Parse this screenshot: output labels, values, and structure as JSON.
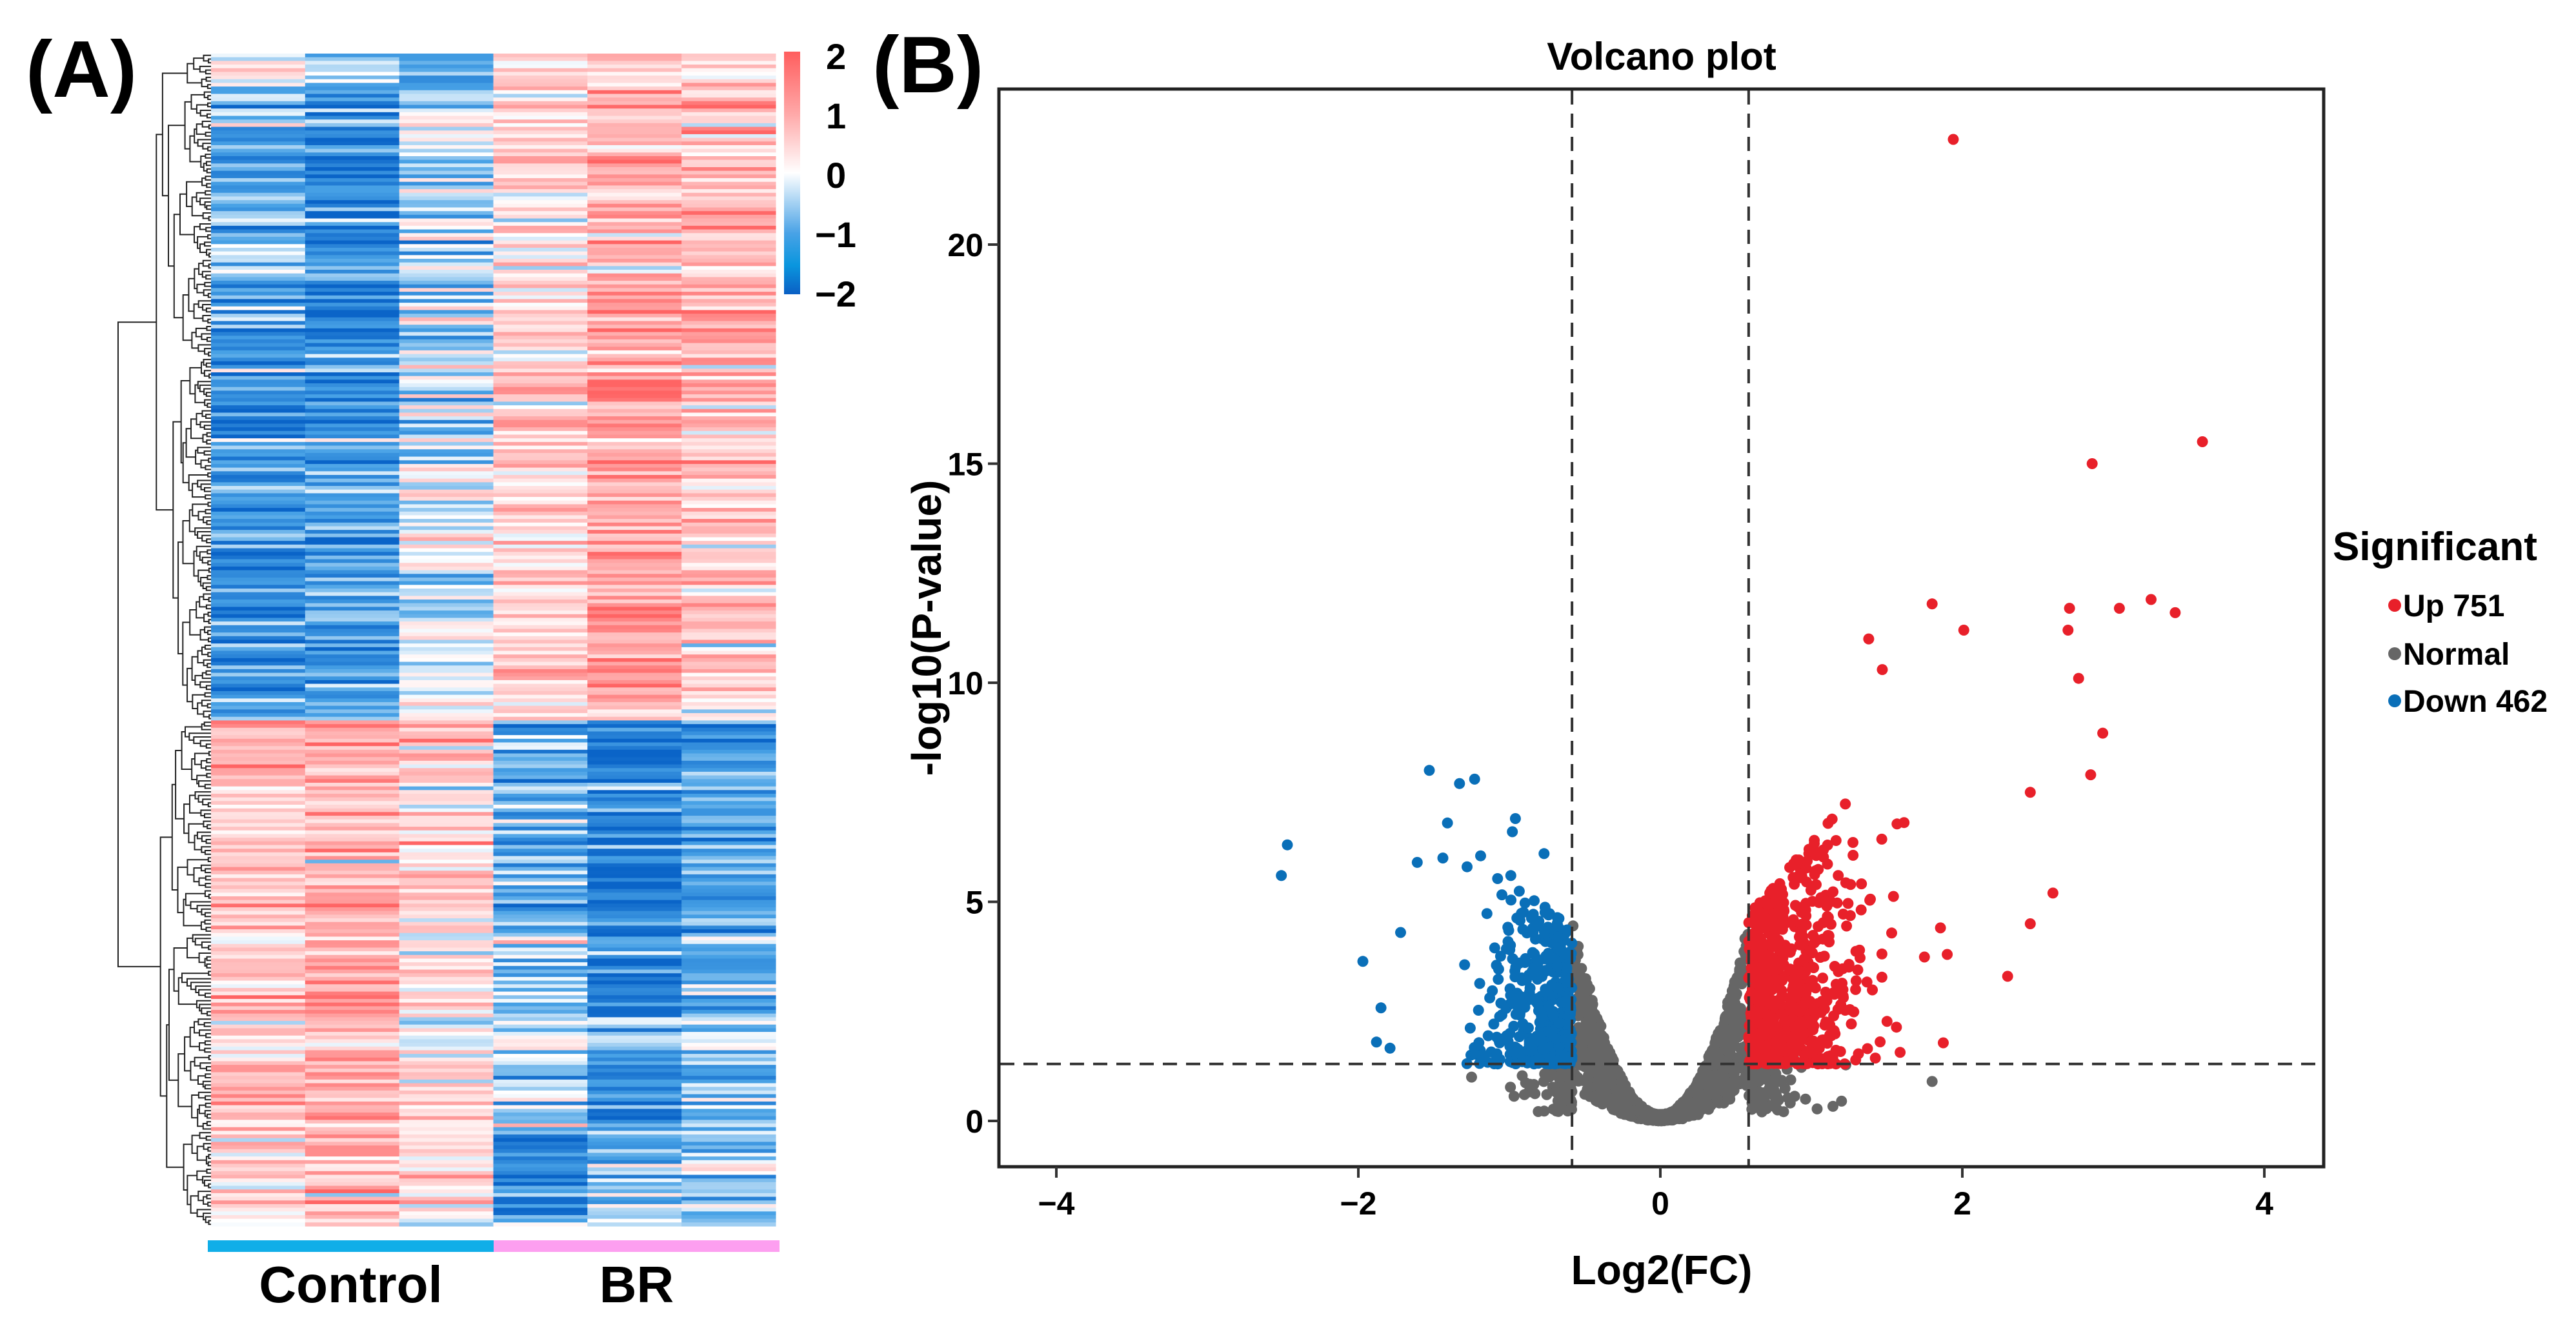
{
  "panels": {
    "a_label": "(A)",
    "b_label": "(B)"
  },
  "chart_data": [
    {
      "type": "heatmap",
      "panel": "A",
      "row_count": 320,
      "column_groups": [
        {
          "label": "Control",
          "columns": 3,
          "color": "#10aee8"
        },
        {
          "label": "BR",
          "columns": 3,
          "color": "#fd9ff0"
        }
      ],
      "row_dendrogram": true,
      "colorbar": {
        "ticks": [
          {
            "value": 2,
            "label": "2"
          },
          {
            "value": 1,
            "label": "1"
          },
          {
            "value": 0,
            "label": "0"
          },
          {
            "value": -1,
            "label": "−1"
          },
          {
            "value": -2,
            "label": "−2"
          }
        ],
        "range": [
          -2,
          2
        ],
        "colors": {
          "-2": "#0a64c8",
          "-1": "#48a2e6",
          "0": "#ffffff",
          "1": "#ffb3b3",
          "2": "#ff6464"
        }
      },
      "row_clusters": [
        {
          "fraction": [
            0.0,
            0.03
          ],
          "column_means": [
            -0.3,
            -0.8,
            -1.2,
            0.8,
            0.6,
            0.5
          ]
        },
        {
          "fraction": [
            0.03,
            0.26
          ],
          "column_means": [
            -0.9,
            -1.5,
            -0.4,
            0.5,
            1.0,
            0.9
          ]
        },
        {
          "fraction": [
            0.26,
            0.57
          ],
          "column_means": [
            -1.3,
            -1.2,
            -0.2,
            0.6,
            1.2,
            0.8
          ]
        },
        {
          "fraction": [
            0.57,
            0.75
          ],
          "column_means": [
            0.7,
            0.9,
            0.5,
            -0.7,
            -1.5,
            -0.9
          ]
        },
        {
          "fraction": [
            0.75,
            0.92
          ],
          "column_means": [
            0.6,
            1.1,
            0.3,
            -0.5,
            -1.2,
            -0.8
          ]
        },
        {
          "fraction": [
            0.92,
            1.0
          ],
          "column_means": [
            0.5,
            0.9,
            0.2,
            -1.4,
            -0.6,
            -0.5
          ]
        }
      ]
    },
    {
      "type": "scatter",
      "panel": "B",
      "title": "Volcano plot",
      "xlabel": "Log2(FC)",
      "ylabel": "-log10(P-value)",
      "xlim": [
        -4.38,
        4.4
      ],
      "ylim": [
        -1.04,
        23.55
      ],
      "xticks": [
        -4,
        -2,
        0,
        2,
        4
      ],
      "yticks": [
        0,
        5,
        10,
        15,
        20
      ],
      "grid": false,
      "thresholds": {
        "log2fc": 0.585,
        "neg_log10_p": 1.3
      },
      "legend": {
        "title": "Significant",
        "placement": "right",
        "items": [
          {
            "label": "Up 751",
            "color": "#e8202a",
            "count": 751
          },
          {
            "label": "Normal",
            "color": "#666666",
            "count": null
          },
          {
            "label": "Down 462",
            "color": "#0a6fb8",
            "count": 462
          }
        ]
      },
      "series": [
        {
          "name": "Up",
          "count": 751,
          "color": "#e8202a",
          "highlighted_points": [
            [
              1.94,
              22.4
            ],
            [
              3.59,
              15.5
            ],
            [
              2.86,
              15.0
            ],
            [
              1.8,
              11.8
            ],
            [
              2.01,
              11.2
            ],
            [
              2.71,
              11.7
            ],
            [
              2.7,
              11.2
            ],
            [
              3.04,
              11.7
            ],
            [
              3.25,
              11.9
            ],
            [
              3.41,
              11.6
            ],
            [
              1.38,
              11.0
            ],
            [
              2.77,
              10.1
            ],
            [
              1.47,
              10.3
            ],
            [
              2.93,
              8.85
            ],
            [
              2.85,
              7.9
            ],
            [
              2.45,
              7.5
            ],
            [
              2.3,
              3.3
            ],
            [
              2.6,
              5.2
            ],
            [
              2.45,
              4.5
            ],
            [
              1.9,
              3.8
            ]
          ]
        },
        {
          "name": "Normal",
          "count": 3000,
          "color": "#666666",
          "highlighted_points": [
            [
              1.8,
              0.9
            ],
            [
              1.2,
              0.45
            ],
            [
              -1.25,
              1.0
            ],
            [
              -0.9,
              0.6
            ]
          ]
        },
        {
          "name": "Down",
          "count": 462,
          "color": "#0a6fb8",
          "highlighted_points": [
            [
              -2.47,
              6.3
            ],
            [
              -2.51,
              5.6
            ],
            [
              -1.53,
              8.0
            ],
            [
              -1.33,
              7.7
            ],
            [
              -1.23,
              7.8
            ],
            [
              -1.41,
              6.8
            ],
            [
              -0.96,
              6.9
            ],
            [
              -0.98,
              6.6
            ],
            [
              -1.61,
              5.9
            ],
            [
              -1.44,
              6.0
            ],
            [
              -1.19,
              6.05
            ],
            [
              -1.28,
              5.8
            ],
            [
              -0.77,
              6.1
            ],
            [
              -0.99,
              5.6
            ],
            [
              -1.97,
              3.64
            ],
            [
              -1.85,
              2.58
            ],
            [
              -1.88,
              1.8
            ],
            [
              -1.79,
              1.66
            ],
            [
              -1.72,
              4.3
            ]
          ]
        }
      ]
    }
  ]
}
